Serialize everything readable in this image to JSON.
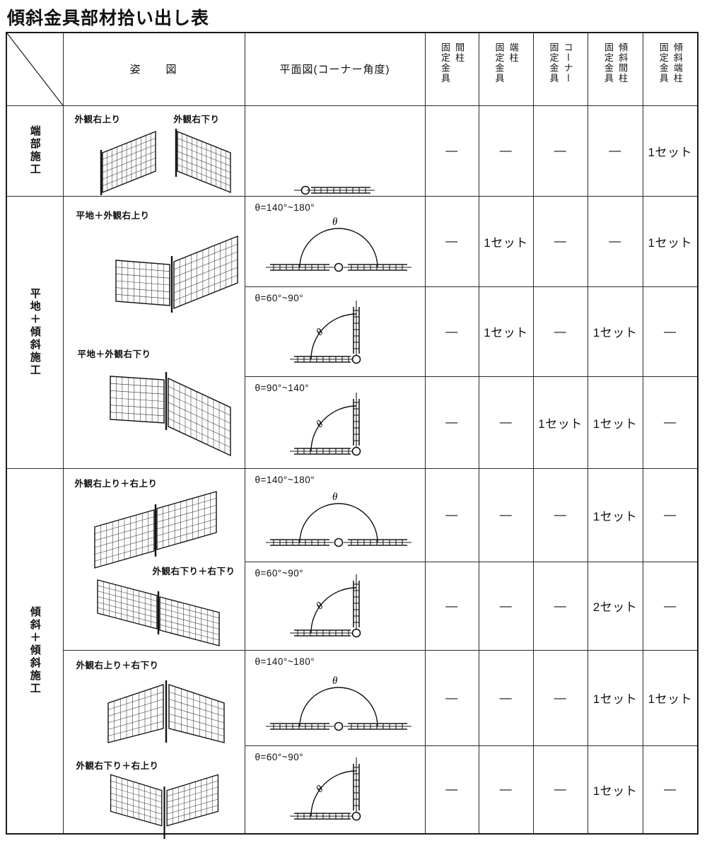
{
  "title": "傾斜金具部材拾い出し表",
  "header": {
    "appearance": "姿　　図",
    "plan": "平面図(コーナー角度)",
    "fittings": [
      {
        "name": "間柱",
        "suffix": "固定金具"
      },
      {
        "name": "端柱",
        "suffix": "固定金具"
      },
      {
        "name": "コーナー",
        "suffix": "固定金具"
      },
      {
        "name": "傾斜間柱",
        "suffix": "固定金具"
      },
      {
        "name": "傾斜端柱",
        "suffix": "固定金具"
      }
    ]
  },
  "groups": [
    {
      "label": "端部施工"
    },
    {
      "label": "平地＋傾斜施工"
    },
    {
      "label": "傾斜＋傾斜施工"
    }
  ],
  "appearance_cells": [
    {
      "labels": [
        "外観右上り",
        "外観右下り"
      ]
    },
    {
      "labels": [
        "平地＋外観右上り",
        "平地＋外観右下り"
      ]
    },
    {
      "labels": [
        "外観右上り＋右上り",
        "外観右下り＋右下り"
      ]
    },
    {
      "labels": [
        "外観右上り＋右下り",
        "外観右下り＋右上り"
      ]
    }
  ],
  "diagram": {
    "theta": "θ"
  },
  "rows": [
    {
      "angle": "",
      "values": [
        "—",
        "—",
        "—",
        "—",
        "1セット"
      ]
    },
    {
      "angle": "θ=140°~180°",
      "values": [
        "—",
        "1セット",
        "—",
        "—",
        "1セット"
      ]
    },
    {
      "angle": "θ=60°~90°",
      "values": [
        "—",
        "1セット",
        "—",
        "1セット",
        "—"
      ]
    },
    {
      "angle": "θ=90°~140°",
      "values": [
        "—",
        "—",
        "1セット",
        "1セット",
        "—"
      ]
    },
    {
      "angle": "θ=140°~180°",
      "values": [
        "—",
        "—",
        "—",
        "1セット",
        "—"
      ]
    },
    {
      "angle": "θ=60°~90°",
      "values": [
        "—",
        "—",
        "—",
        "2セット",
        "—"
      ]
    },
    {
      "angle": "θ=140°~180°",
      "values": [
        "—",
        "—",
        "—",
        "1セット",
        "1セット"
      ]
    },
    {
      "angle": "θ=60°~90°",
      "values": [
        "—",
        "—",
        "—",
        "1セット",
        "—"
      ]
    }
  ]
}
